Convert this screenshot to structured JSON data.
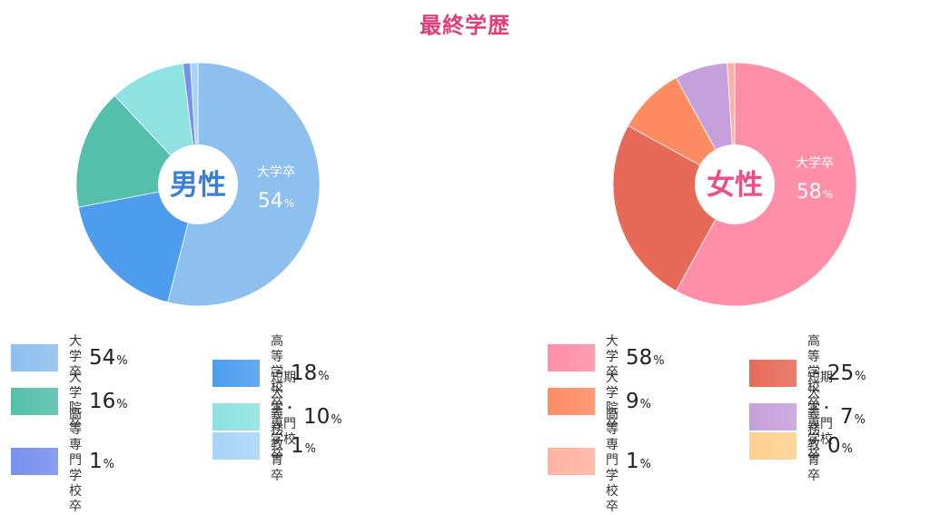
{
  "title": "最終学歴",
  "chart_data": [
    {
      "type": "pie",
      "center_label": "男性",
      "callout": {
        "label": "大学卒",
        "value": "54",
        "unit": "%"
      },
      "slices": [
        {
          "label": "大学卒",
          "value": 54,
          "display_value": "54",
          "color": "#8dbfef"
        },
        {
          "label": "高等学校卒",
          "value": 18,
          "display_value": "18",
          "color": "#4d9cee"
        },
        {
          "label": "大学院卒",
          "value": 16,
          "display_value": "16",
          "color": "#54c0ab"
        },
        {
          "label": "短期大学・専門学校卒",
          "value": 10,
          "display_value": "10",
          "color": "#8ee2e1"
        },
        {
          "label": "高等専門学校卒",
          "value": 1,
          "display_value": "1",
          "color": "#7890ee"
        },
        {
          "label": "義務教育卒",
          "value": 1,
          "display_value": "1",
          "color": "#a8d4f6"
        }
      ]
    },
    {
      "type": "pie",
      "center_label": "女性",
      "callout": {
        "label": "大学卒",
        "value": "58",
        "unit": "%"
      },
      "slices": [
        {
          "label": "大学卒",
          "value": 58,
          "display_value": "58",
          "color": "#ff8fa8"
        },
        {
          "label": "高等学校卒",
          "value": 25,
          "display_value": "25",
          "color": "#e76a59"
        },
        {
          "label": "大学院卒",
          "value": 9,
          "display_value": "9",
          "color": "#ff8b63"
        },
        {
          "label": "短期大学・専門学校卒",
          "value": 7,
          "display_value": "7",
          "color": "#c6a0dc"
        },
        {
          "label": "高等専門学校卒",
          "value": 1,
          "display_value": "1",
          "color": "#ffb2a2"
        },
        {
          "label": "義務教育卒",
          "value": 0,
          "display_value": "0",
          "color": "#ffd08f"
        }
      ]
    }
  ],
  "unit": "%",
  "colors": {
    "title": "#e23d7a",
    "male_center": "#3a7fd6",
    "female_center": "#ee4e86"
  }
}
